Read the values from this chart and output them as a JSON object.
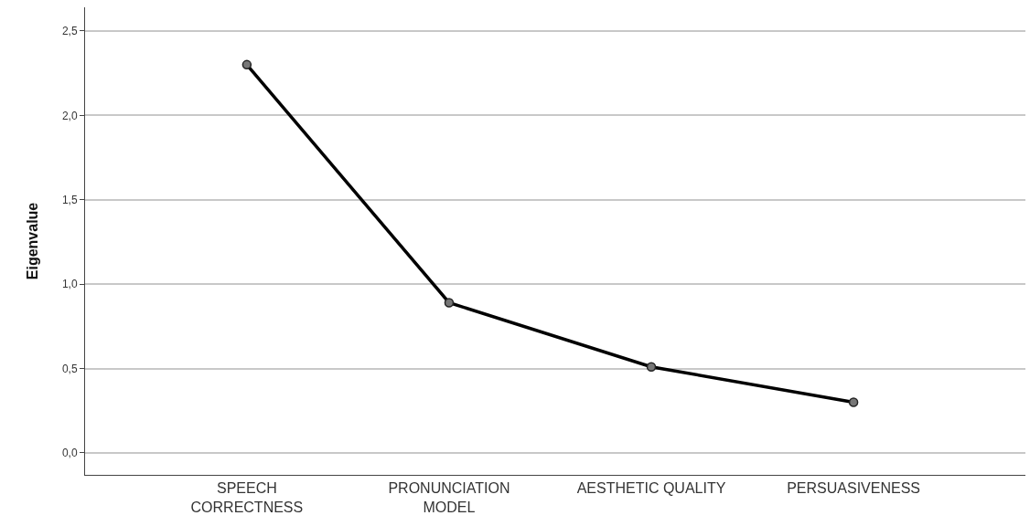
{
  "chart_data": {
    "type": "line",
    "ylabel": "Eigenvalue",
    "categories": [
      "SPEECH\nCORRECTNESS",
      "PRONUNCIATION\nMODEL",
      "AESTHETIC QUALITY",
      "PERSUASIVENESS"
    ],
    "series": [
      {
        "color": "#000000",
        "values": [
          2.3,
          0.89,
          0.51,
          0.3
        ]
      }
    ],
    "ylim": [
      -0.13,
      2.64
    ],
    "yticks": [
      {
        "value": 0,
        "label": "0,0"
      },
      {
        "value": 0.5,
        "label": "0,5"
      },
      {
        "value": 1,
        "label": "1,0"
      },
      {
        "value": 1.5,
        "label": "1,5"
      },
      {
        "value": 2,
        "label": "2,0"
      },
      {
        "value": 2.5,
        "label": "2,5"
      }
    ],
    "grid": "y",
    "marker": "circle",
    "line_style": "solid",
    "legend": false
  }
}
